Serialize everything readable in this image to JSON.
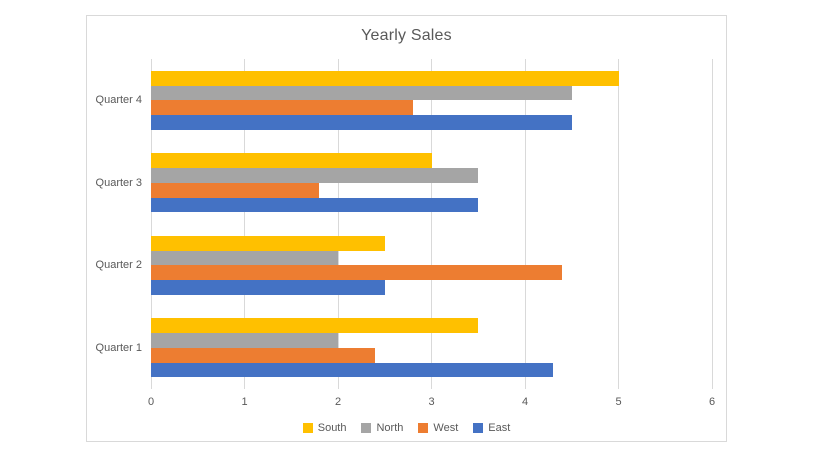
{
  "chart_data": {
    "type": "bar",
    "orientation": "horizontal",
    "title": "Yearly Sales",
    "categories_top_to_bottom": [
      "Quarter 4",
      "Quarter 3",
      "Quarter 2",
      "Quarter 1"
    ],
    "series": [
      {
        "name": "South",
        "color": "#FFC000",
        "values_by_category": {
          "Quarter 4": 5,
          "Quarter 3": 3,
          "Quarter 2": 2.5,
          "Quarter 1": 3.5
        }
      },
      {
        "name": "North",
        "color": "#A5A5A5",
        "values_by_category": {
          "Quarter 4": 4.5,
          "Quarter 3": 3.5,
          "Quarter 2": 2,
          "Quarter 1": 2
        }
      },
      {
        "name": "West",
        "color": "#ED7D31",
        "values_by_category": {
          "Quarter 4": 2.8,
          "Quarter 3": 1.8,
          "Quarter 2": 4.4,
          "Quarter 1": 2.4
        }
      },
      {
        "name": "East",
        "color": "#4472C4",
        "values_by_category": {
          "Quarter 4": 4.5,
          "Quarter 3": 3.5,
          "Quarter 2": 2.5,
          "Quarter 1": 4.3
        }
      }
    ],
    "xlim": [
      0,
      6
    ],
    "x_ticks": [
      "0",
      "1",
      "2",
      "3",
      "4",
      "5",
      "6"
    ],
    "grid": "vertical-on",
    "legend_position": "bottom-center",
    "colors": {
      "gridline": "#D9D9D9",
      "chart_border": "#D9D9D9",
      "text": "#595959",
      "background": "#FFFFFF"
    }
  }
}
